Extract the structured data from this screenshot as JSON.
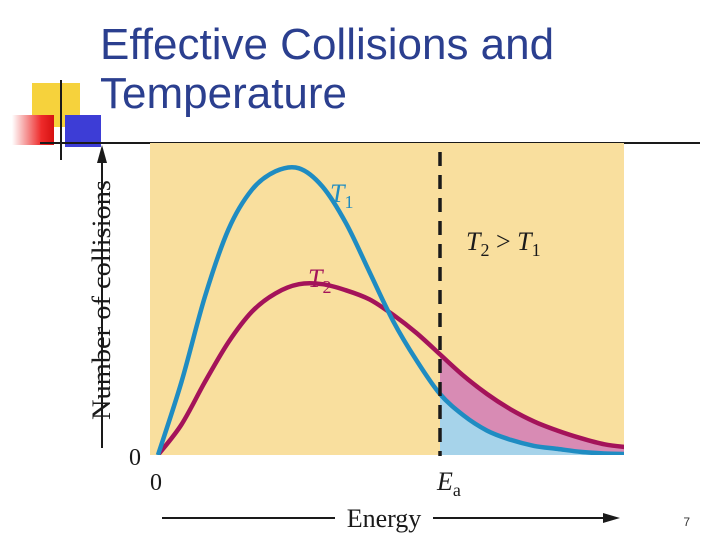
{
  "slide": {
    "title_line1": "Effective Collisions and",
    "title_line2": "Temperature",
    "page_number": "7"
  },
  "colors": {
    "title": "#2b3f8f",
    "plot_bg": "#f9df9e",
    "t1_curve": "#1f8cc2",
    "t2_curve": "#a4135a",
    "t1_fill": "#a6d3ea",
    "t2_fill": "#d88bb4"
  },
  "chart_data": {
    "type": "line",
    "title": "",
    "xlabel": "Energy",
    "ylabel": "Number of collisions",
    "x_tick_labels": [
      "0"
    ],
    "y_tick_labels": [
      "0"
    ],
    "xlim": [
      0,
      10
    ],
    "ylim": [
      0,
      1.0
    ],
    "activation_energy": {
      "label": "Ea",
      "label_main": "E",
      "label_sub": "a",
      "x": 6.0
    },
    "annotation": {
      "text": "T2 > T1",
      "lhs_main": "T",
      "lhs_sub": "2",
      "op": " > ",
      "rhs_main": "T",
      "rhs_sub": "1"
    },
    "series": [
      {
        "name": "T1",
        "label_main": "T",
        "label_sub": "1",
        "x": [
          0,
          0.5,
          1,
          1.5,
          2,
          2.5,
          3,
          3.5,
          4,
          4.5,
          5,
          5.5,
          6,
          6.5,
          7,
          7.5,
          8,
          8.5,
          9,
          9.5,
          10
        ],
        "y": [
          0,
          0.24,
          0.52,
          0.74,
          0.87,
          0.93,
          0.94,
          0.88,
          0.76,
          0.6,
          0.44,
          0.31,
          0.2,
          0.13,
          0.08,
          0.05,
          0.03,
          0.02,
          0.01,
          0.005,
          0.003
        ]
      },
      {
        "name": "T2",
        "label_main": "T",
        "label_sub": "2",
        "x": [
          0,
          0.5,
          1,
          1.5,
          2,
          2.5,
          3,
          3.5,
          4,
          4.5,
          5,
          5.5,
          6,
          6.5,
          7,
          7.5,
          8,
          8.5,
          9,
          9.5,
          10
        ],
        "y": [
          0,
          0.1,
          0.24,
          0.37,
          0.47,
          0.53,
          0.56,
          0.56,
          0.54,
          0.51,
          0.46,
          0.4,
          0.33,
          0.26,
          0.2,
          0.15,
          0.11,
          0.08,
          0.055,
          0.035,
          0.025
        ]
      }
    ],
    "shaded_regions": [
      {
        "series": "T2",
        "from_x": 6.0,
        "description_color": "t2_fill"
      },
      {
        "series": "T1",
        "from_x": 6.0,
        "description_color": "t1_fill"
      }
    ]
  }
}
